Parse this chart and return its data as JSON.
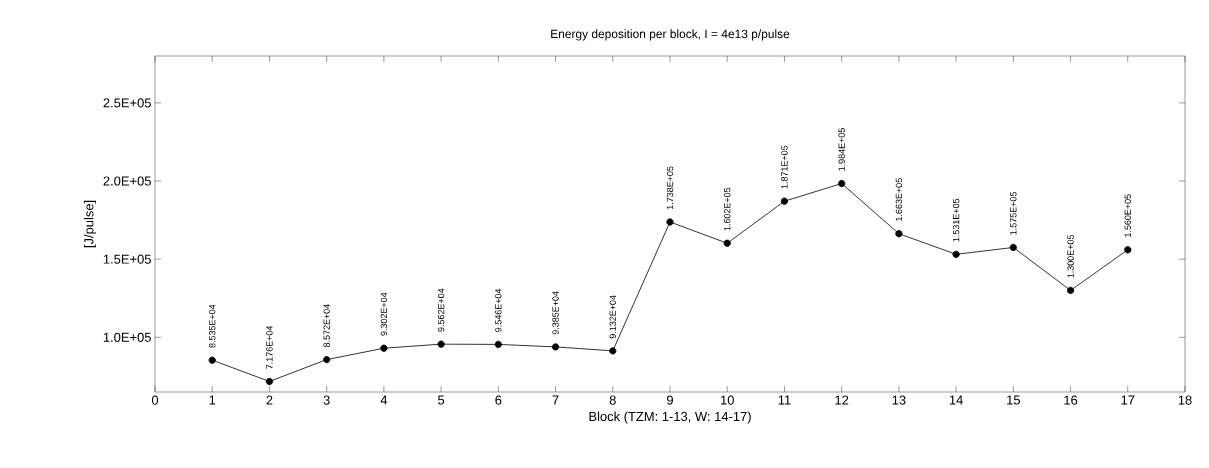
{
  "chart_data": {
    "type": "line",
    "title": "Energy deposition per block, I = 4e13 p/pulse",
    "xlabel": "Block (TZM: 1-13, W: 14-17)",
    "ylabel": "[J/pulse]",
    "x": [
      1,
      2,
      3,
      4,
      5,
      6,
      7,
      8,
      9,
      10,
      11,
      12,
      13,
      14,
      15,
      16,
      17
    ],
    "series": [
      {
        "color": "#000000",
        "values": [
          85350,
          71760,
          85720,
          93020,
          95620,
          95460,
          93850,
          91320,
          173800,
          160200,
          187100,
          198400,
          166300,
          153100,
          157500,
          130000,
          156000
        ],
        "value_labels": [
          "8.535E+04",
          "7.176E+04",
          "8.572E+04",
          "9.302E+04",
          "9.562E+04",
          "9.546E+04",
          "9.385E+04",
          "9.132E+04",
          "1.738E+05",
          "1.602E+05",
          "1.871E+05",
          "1.984E+05",
          "1.663E+05",
          "1.531E+05",
          "1.575E+05",
          "1.300E+05",
          "1.560E+05"
        ]
      }
    ],
    "xlim": [
      0,
      18
    ],
    "xticks": [
      0,
      1,
      2,
      3,
      4,
      5,
      6,
      7,
      8,
      9,
      10,
      11,
      12,
      13,
      14,
      15,
      16,
      17,
      18
    ],
    "ylim": [
      65000,
      280000
    ],
    "yticks": [
      {
        "value": 100000,
        "label": "1.0E+05"
      },
      {
        "value": 150000,
        "label": "1.5E+05"
      },
      {
        "value": 200000,
        "label": "2.0E+05"
      },
      {
        "value": 250000,
        "label": "2.5E+05"
      }
    ],
    "marker": "circle",
    "line_style": "solid",
    "grid": false
  }
}
